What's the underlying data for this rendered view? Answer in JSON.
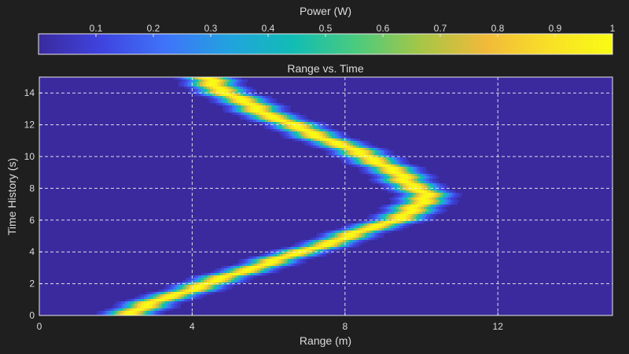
{
  "colorbar": {
    "label": "Power (W)",
    "ticks": [
      "0.1",
      "0.2",
      "0.3",
      "0.4",
      "0.5",
      "0.6",
      "0.7",
      "0.8",
      "0.9",
      "1"
    ],
    "tick_values": [
      0.1,
      0.2,
      0.3,
      0.4,
      0.5,
      0.6,
      0.7,
      0.8,
      0.9,
      1.0
    ],
    "range": [
      0,
      1
    ],
    "colormap": [
      "#3a2a9e",
      "#3f44e0",
      "#3f74fa",
      "#21a3de",
      "#11bdb4",
      "#4ccb7c",
      "#a7c647",
      "#f1b93a",
      "#f9e027",
      "#f9fb14"
    ]
  },
  "chart_data": {
    "type": "heatmap",
    "title": "Range vs. Time",
    "xlabel": "Range (m)",
    "ylabel": "Time History (s)",
    "xlim": [
      0,
      15
    ],
    "ylim": [
      0,
      15
    ],
    "xticks": [
      0,
      4,
      8,
      12
    ],
    "yticks": [
      0,
      2,
      4,
      6,
      8,
      10,
      12,
      14
    ],
    "grid": true,
    "background_value": 0.03,
    "track": [
      {
        "t": 0.0,
        "range": 2.2
      },
      {
        "t": 0.5,
        "range": 2.7
      },
      {
        "t": 1.0,
        "range": 3.2
      },
      {
        "t": 1.5,
        "range": 3.8
      },
      {
        "t": 2.0,
        "range": 4.4
      },
      {
        "t": 2.5,
        "range": 5.0
      },
      {
        "t": 3.0,
        "range": 5.6
      },
      {
        "t": 3.5,
        "range": 6.2
      },
      {
        "t": 4.0,
        "range": 6.9
      },
      {
        "t": 4.5,
        "range": 7.5
      },
      {
        "t": 5.0,
        "range": 8.1
      },
      {
        "t": 5.5,
        "range": 8.7
      },
      {
        "t": 6.0,
        "range": 9.3
      },
      {
        "t": 6.5,
        "range": 9.7
      },
      {
        "t": 7.0,
        "range": 10.0
      },
      {
        "t": 7.5,
        "range": 10.1
      },
      {
        "t": 8.0,
        "range": 9.9
      },
      {
        "t": 8.5,
        "range": 9.6
      },
      {
        "t": 9.0,
        "range": 9.3
      },
      {
        "t": 9.5,
        "range": 9.0
      },
      {
        "t": 10.0,
        "range": 8.6
      },
      {
        "t": 10.5,
        "range": 8.1
      },
      {
        "t": 11.0,
        "range": 7.6
      },
      {
        "t": 11.5,
        "range": 7.1
      },
      {
        "t": 12.0,
        "range": 6.6
      },
      {
        "t": 12.5,
        "range": 6.1
      },
      {
        "t": 13.0,
        "range": 5.7
      },
      {
        "t": 13.5,
        "range": 5.3
      },
      {
        "t": 14.0,
        "range": 4.9
      },
      {
        "t": 14.5,
        "range": 4.6
      },
      {
        "t": 15.0,
        "range": 4.3
      }
    ],
    "track_peak_value": 1.0,
    "track_width_m": 0.35
  }
}
